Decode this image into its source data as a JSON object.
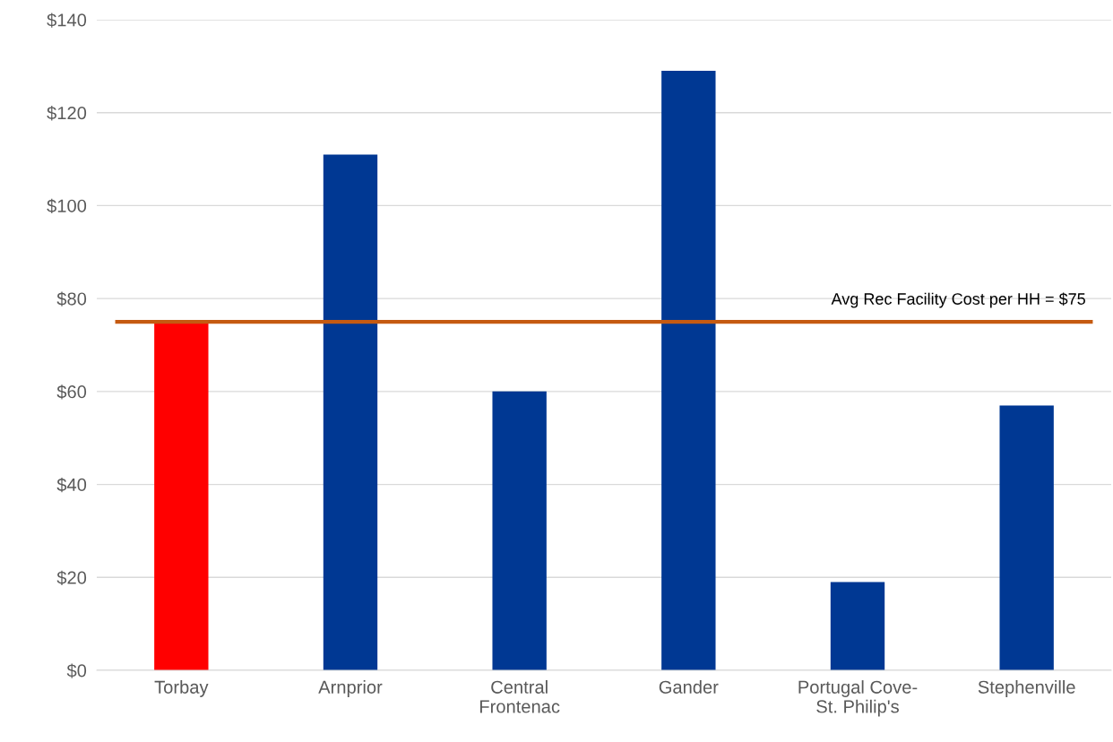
{
  "chart_data": {
    "type": "bar",
    "categories": [
      "Torbay",
      "Arnprior",
      "Central\nFrontenac",
      "Gander",
      "Portugal Cove-\nSt. Philip's",
      "Stephenville"
    ],
    "values": [
      75,
      111,
      60,
      129,
      19,
      57
    ],
    "colors": [
      "#ff0000",
      "#003893",
      "#003893",
      "#003893",
      "#003893",
      "#003893"
    ],
    "ylim": [
      0,
      140
    ],
    "yticks": [
      {
        "value": 0,
        "label": "$0"
      },
      {
        "value": 20,
        "label": "$20"
      },
      {
        "value": 40,
        "label": "$40"
      },
      {
        "value": 60,
        "label": "$60"
      },
      {
        "value": 80,
        "label": "$80"
      },
      {
        "value": 100,
        "label": "$100"
      },
      {
        "value": 120,
        "label": "$120"
      },
      {
        "value": 140,
        "label": "$140"
      }
    ],
    "grid": "y",
    "ref_lines": [
      {
        "axis": "y",
        "value": 75,
        "label": "Avg Rec Facility Cost per HH = $75",
        "color": "#c55a11"
      }
    ]
  }
}
